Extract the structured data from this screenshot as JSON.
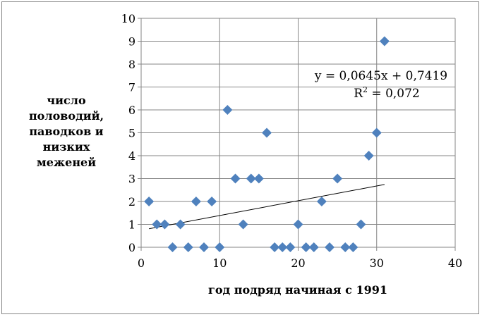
{
  "chart_data": {
    "type": "scatter",
    "xlabel": "год подряд начиная с 1991",
    "ylabel": [
      "число",
      "половодий,",
      "паводков и",
      "низких",
      "меженей"
    ],
    "xlim": [
      0,
      40
    ],
    "ylim": [
      0,
      10
    ],
    "xticks": [
      0,
      10,
      20,
      30,
      40
    ],
    "yticks": [
      0,
      1,
      2,
      3,
      4,
      5,
      6,
      7,
      8,
      9,
      10
    ],
    "grid": true,
    "marker": "diamond",
    "marker_color": "#4F81BD",
    "x": [
      1,
      2,
      3,
      4,
      5,
      6,
      7,
      8,
      9,
      10,
      11,
      12,
      13,
      14,
      15,
      16,
      17,
      18,
      19,
      20,
      21,
      22,
      23,
      24,
      25,
      26,
      27,
      28,
      29,
      30,
      31
    ],
    "y": [
      2,
      1,
      1,
      0,
      1,
      0,
      2,
      0,
      2,
      0,
      6,
      3,
      1,
      3,
      3,
      5,
      0,
      0,
      0,
      1,
      0,
      0,
      2,
      0,
      3,
      0,
      0,
      1,
      4,
      5,
      9
    ],
    "trendline": {
      "type": "linear",
      "slope": 0.0645,
      "intercept": 0.7419,
      "x_range": [
        1,
        31
      ],
      "equation": "y = 0,0645x + 0,7419",
      "r2_label": "R",
      "r2_value": " = 0,072"
    }
  }
}
